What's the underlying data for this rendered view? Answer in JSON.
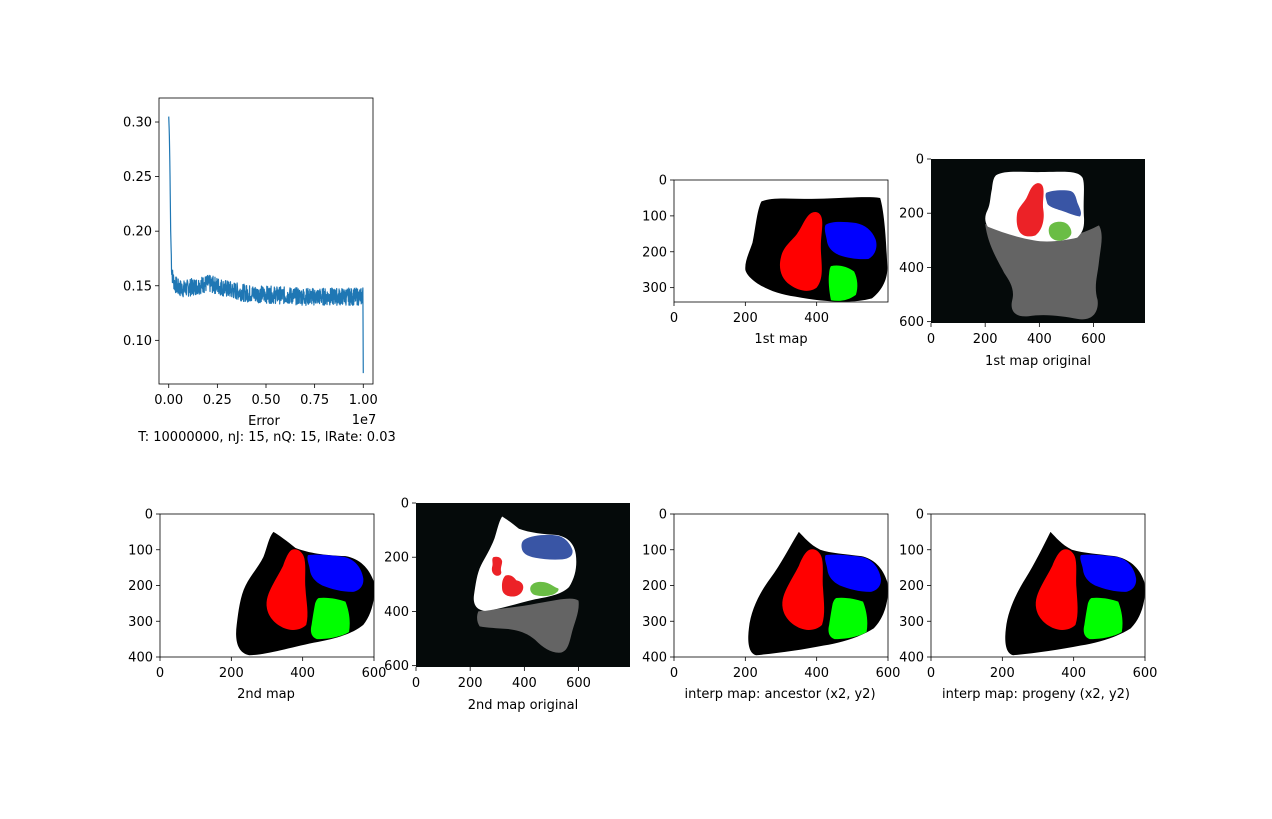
{
  "chart_data": [
    {
      "type": "line",
      "title": "",
      "xlabel": "Error",
      "ylabel": "",
      "caption": "T: 10000000, nJ: 15, nQ: 15, lRate: 0.03",
      "x_offset_text": "1e7",
      "xlim": [
        -0.05,
        1.05
      ],
      "ylim": [
        0.06,
        0.322
      ],
      "xticks": [
        0.0,
        0.25,
        0.5,
        0.75,
        1.0
      ],
      "xtick_labels": [
        "0.00",
        "0.25",
        "0.50",
        "0.75",
        "1.00"
      ],
      "yticks": [
        0.1,
        0.15,
        0.2,
        0.25,
        0.3
      ],
      "ytick_labels": [
        "0.10",
        "0.15",
        "0.20",
        "0.25",
        "0.30"
      ],
      "grid": false,
      "line_color": "#1f77b4",
      "series": [
        {
          "x": [
            0.0,
            0.003,
            0.006,
            0.01,
            0.015,
            0.02,
            0.03,
            0.05,
            0.08,
            0.1,
            0.15,
            0.2,
            0.25,
            0.3,
            0.35,
            0.4,
            0.5,
            0.6,
            0.7,
            0.8,
            0.9,
            0.98,
            0.995,
            1.0
          ],
          "values": [
            0.305,
            0.29,
            0.26,
            0.2,
            0.165,
            0.158,
            0.152,
            0.148,
            0.147,
            0.148,
            0.15,
            0.152,
            0.15,
            0.147,
            0.145,
            0.143,
            0.142,
            0.141,
            0.14,
            0.14,
            0.14,
            0.14,
            0.14,
            0.07
          ]
        }
      ]
    },
    {
      "type": "image",
      "title": "",
      "xlabel": "1st map",
      "xticks": [
        0,
        200,
        400
      ],
      "yticks": [
        0,
        100,
        200,
        300
      ],
      "xlim": [
        0,
        600
      ],
      "ylim": [
        340,
        0
      ],
      "background": "#ffffff",
      "regions": [
        {
          "name": "outline",
          "color": "#000000"
        },
        {
          "name": "left-region",
          "color": "#ff0000"
        },
        {
          "name": "top-right-region",
          "color": "#0000ff"
        },
        {
          "name": "bottom-right-region",
          "color": "#00ff00"
        }
      ]
    },
    {
      "type": "image",
      "title": "",
      "xlabel": "1st map original",
      "xticks": [
        0,
        200,
        400,
        600
      ],
      "yticks": [
        0,
        200,
        400,
        600
      ],
      "xlim": [
        0,
        790
      ],
      "ylim": [
        605,
        0
      ],
      "background": "#050a0a",
      "regions": [
        {
          "name": "upper-body",
          "color": "#ffffff"
        },
        {
          "name": "lower-body",
          "color": "#646464"
        },
        {
          "name": "red-blob",
          "color": "#ec2227"
        },
        {
          "name": "blue-blob",
          "color": "#3955a5"
        },
        {
          "name": "green-blob",
          "color": "#6abd45"
        }
      ]
    },
    {
      "type": "image",
      "title": "",
      "xlabel": "2nd map",
      "xticks": [
        0,
        200,
        400,
        600
      ],
      "yticks": [
        0,
        100,
        200,
        300,
        400
      ],
      "xlim": [
        0,
        600
      ],
      "ylim": [
        400,
        0
      ],
      "background": "#ffffff",
      "regions": [
        {
          "name": "outline",
          "color": "#000000"
        },
        {
          "name": "left-region",
          "color": "#ff0000"
        },
        {
          "name": "top-right-region",
          "color": "#0000ff"
        },
        {
          "name": "bottom-right-region",
          "color": "#00ff00"
        }
      ]
    },
    {
      "type": "image",
      "title": "",
      "xlabel": "2nd map original",
      "xticks": [
        0,
        200,
        400,
        600
      ],
      "yticks": [
        0,
        200,
        400,
        600
      ],
      "xlim": [
        0,
        790
      ],
      "ylim": [
        605,
        0
      ],
      "background": "#050a0a",
      "regions": [
        {
          "name": "upper-body",
          "color": "#ffffff"
        },
        {
          "name": "lower-body",
          "color": "#646464"
        },
        {
          "name": "red-blob",
          "color": "#ec2227"
        },
        {
          "name": "blue-blob",
          "color": "#3955a5"
        },
        {
          "name": "green-blob",
          "color": "#6abd45"
        }
      ]
    },
    {
      "type": "image",
      "title": "",
      "xlabel": "interp map: ancestor (x2, y2)",
      "xticks": [
        0,
        200,
        400,
        600
      ],
      "yticks": [
        0,
        100,
        200,
        300,
        400
      ],
      "xlim": [
        0,
        600
      ],
      "ylim": [
        400,
        0
      ],
      "background": "#ffffff",
      "regions": [
        {
          "name": "outline",
          "color": "#000000"
        },
        {
          "name": "left-region",
          "color": "#ff0000"
        },
        {
          "name": "top-right-region",
          "color": "#0000ff"
        },
        {
          "name": "bottom-right-region",
          "color": "#00ff00"
        }
      ]
    },
    {
      "type": "image",
      "title": "",
      "xlabel": "interp map: progeny (x2, y2)",
      "xticks": [
        0,
        200,
        400,
        600
      ],
      "yticks": [
        0,
        100,
        200,
        300,
        400
      ],
      "xlim": [
        0,
        600
      ],
      "ylim": [
        400,
        0
      ],
      "background": "#ffffff",
      "regions": [
        {
          "name": "outline",
          "color": "#000000"
        },
        {
          "name": "left-region",
          "color": "#ff0000"
        },
        {
          "name": "top-right-region",
          "color": "#0000ff"
        },
        {
          "name": "bottom-right-region",
          "color": "#00ff00"
        }
      ]
    }
  ]
}
